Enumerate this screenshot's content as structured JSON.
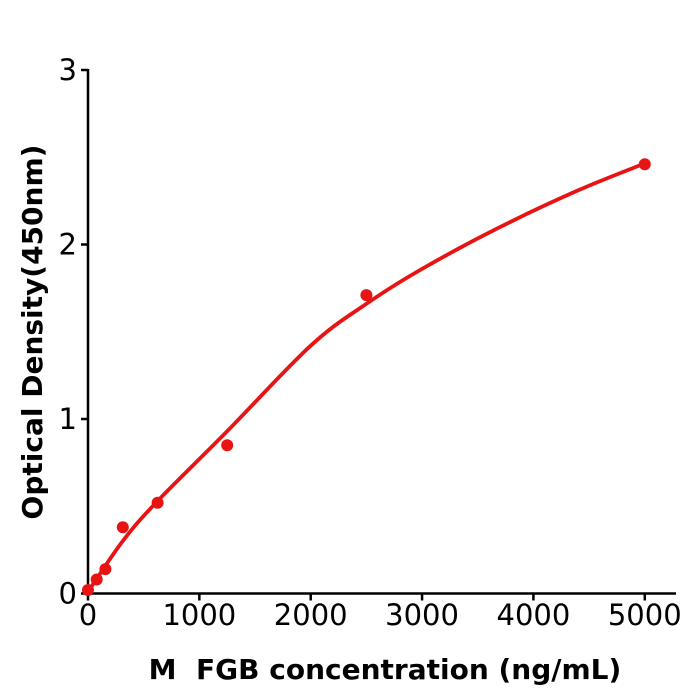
{
  "figure": {
    "background_color": "#ffffff",
    "accent_color": "#e81313",
    "axis_color": "#000000"
  },
  "chart_data": {
    "type": "scatter",
    "title": "",
    "xlabel": "M  FGB concentration (ng/mL)",
    "ylabel": "Optical Density(450nm)",
    "xlim": [
      0,
      5290
    ],
    "ylim": [
      0,
      3
    ],
    "x_ticks": [
      0,
      1000,
      2000,
      3000,
      4000,
      5000
    ],
    "y_ticks": [
      0,
      1,
      2,
      3
    ],
    "grid": false,
    "legend": "none",
    "series": [
      {
        "name": "standard-points",
        "type": "scatter",
        "color": "#e81313",
        "x": [
          0,
          78.125,
          156.25,
          312.5,
          625,
          1250,
          2500,
          5000
        ],
        "y": [
          0.02,
          0.08,
          0.14,
          0.38,
          0.52,
          0.85,
          1.71,
          2.46
        ]
      },
      {
        "name": "fit-curve",
        "type": "line",
        "color": "#e81313",
        "x": [
          0,
          312,
          625,
          1250,
          2000,
          2500,
          3000,
          3700,
          4400,
          5000
        ],
        "y": [
          0.01,
          0.3,
          0.53,
          0.93,
          1.42,
          1.66,
          1.86,
          2.1,
          2.31,
          2.465
        ]
      }
    ]
  }
}
